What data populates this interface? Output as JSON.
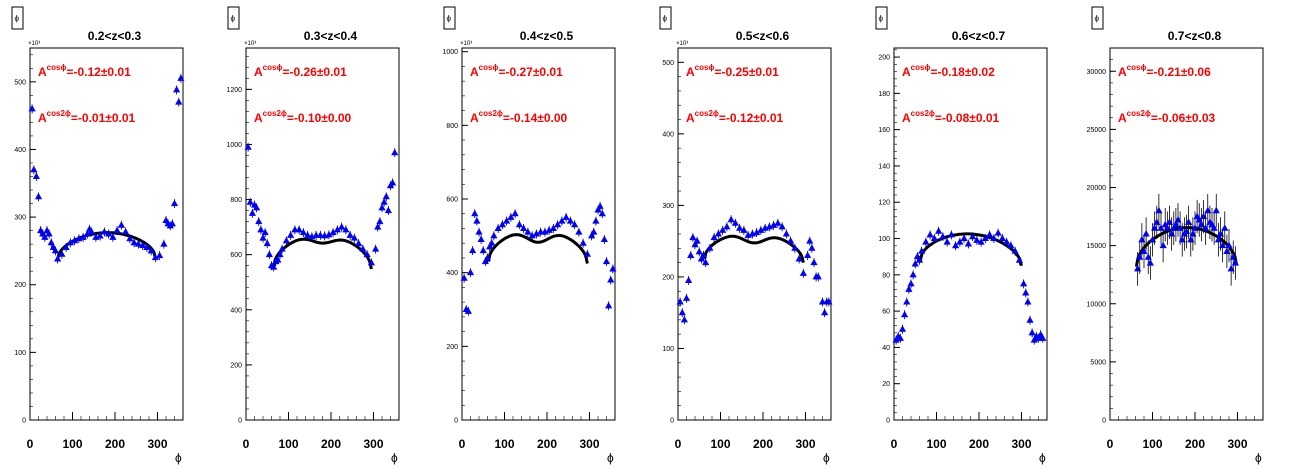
{
  "panel_tab_icon": "phi-tab-icon",
  "colors": {
    "marker": "#0000ff",
    "fit": "#000000",
    "annotation": "#ff0000"
  },
  "chart_data": [
    {
      "type": "scatter",
      "title": "0.2<z<0.3",
      "xlabel": "ϕ",
      "multiplier": "×10³",
      "xlim": [
        0,
        360
      ],
      "ylim": [
        0,
        550
      ],
      "xticks": [
        0,
        100,
        200,
        300
      ],
      "yticks": [
        0,
        100,
        200,
        300,
        400,
        500
      ],
      "annotations": [
        "A^{cosϕ}=-0.12±0.01",
        "A^{cos2ϕ}=-0.01±0.01"
      ],
      "points": [
        [
          5,
          460
        ],
        [
          9,
          370
        ],
        [
          15,
          360
        ],
        [
          20,
          330
        ],
        [
          25,
          280
        ],
        [
          30,
          275
        ],
        [
          35,
          270
        ],
        [
          40,
          280
        ],
        [
          45,
          275
        ],
        [
          50,
          262
        ],
        [
          55,
          255
        ],
        [
          60,
          250
        ],
        [
          65,
          238
        ],
        [
          75,
          245
        ],
        [
          85,
          255
        ],
        [
          95,
          262
        ],
        [
          105,
          265
        ],
        [
          115,
          268
        ],
        [
          125,
          270
        ],
        [
          135,
          275
        ],
        [
          140,
          282
        ],
        [
          145,
          278
        ],
        [
          155,
          270
        ],
        [
          165,
          272
        ],
        [
          175,
          278
        ],
        [
          185,
          275
        ],
        [
          195,
          270
        ],
        [
          205,
          280
        ],
        [
          215,
          288
        ],
        [
          225,
          278
        ],
        [
          235,
          268
        ],
        [
          245,
          262
        ],
        [
          255,
          260
        ],
        [
          265,
          258
        ],
        [
          275,
          255
        ],
        [
          285,
          250
        ],
        [
          295,
          240
        ],
        [
          305,
          243
        ],
        [
          315,
          260
        ],
        [
          320,
          295
        ],
        [
          325,
          290
        ],
        [
          330,
          287
        ],
        [
          335,
          290
        ],
        [
          340,
          320
        ],
        [
          345,
          488
        ],
        [
          350,
          470
        ],
        [
          355,
          505
        ]
      ],
      "fit": {
        "x_start": 65,
        "x_end": 295,
        "y_start": 238,
        "y_end": 240,
        "amplitude": 38,
        "peak_phase": 180
      }
    },
    {
      "type": "scatter",
      "title": "0.3<z<0.4",
      "xlabel": "ϕ",
      "multiplier": "×10³",
      "xlim": [
        0,
        360
      ],
      "ylim": [
        0,
        1350
      ],
      "xticks": [
        0,
        100,
        200,
        300
      ],
      "yticks": [
        0,
        200,
        400,
        600,
        800,
        1000,
        1200
      ],
      "annotations": [
        "A^{cosϕ}=-0.26±0.01",
        "A^{cos2ϕ}=-0.10±0.00"
      ],
      "points": [
        [
          5,
          990
        ],
        [
          10,
          790
        ],
        [
          15,
          750
        ],
        [
          20,
          780
        ],
        [
          25,
          770
        ],
        [
          30,
          720
        ],
        [
          35,
          690
        ],
        [
          40,
          660
        ],
        [
          45,
          680
        ],
        [
          50,
          640
        ],
        [
          55,
          600
        ],
        [
          60,
          560
        ],
        [
          65,
          555
        ],
        [
          70,
          575
        ],
        [
          75,
          580
        ],
        [
          80,
          600
        ],
        [
          85,
          620
        ],
        [
          95,
          650
        ],
        [
          105,
          670
        ],
        [
          115,
          690
        ],
        [
          125,
          690
        ],
        [
          135,
          680
        ],
        [
          145,
          670
        ],
        [
          155,
          665
        ],
        [
          165,
          670
        ],
        [
          175,
          670
        ],
        [
          185,
          668
        ],
        [
          195,
          672
        ],
        [
          205,
          680
        ],
        [
          215,
          690
        ],
        [
          225,
          700
        ],
        [
          235,
          690
        ],
        [
          245,
          670
        ],
        [
          255,
          660
        ],
        [
          265,
          640
        ],
        [
          275,
          620
        ],
        [
          285,
          600
        ],
        [
          295,
          570
        ],
        [
          305,
          620
        ],
        [
          310,
          700
        ],
        [
          315,
          720
        ],
        [
          320,
          770
        ],
        [
          325,
          790
        ],
        [
          330,
          810
        ],
        [
          335,
          760
        ],
        [
          340,
          850
        ],
        [
          345,
          860
        ],
        [
          350,
          970
        ]
      ],
      "fit": {
        "x_start": 65,
        "x_end": 295,
        "y_start": 556,
        "y_end": 548,
        "amplitude": 120,
        "peak_phase": 180,
        "dip": 30
      }
    },
    {
      "type": "scatter",
      "title": "0.4<z<0.5",
      "xlabel": "ϕ",
      "multiplier": "×10³",
      "xlim": [
        0,
        360
      ],
      "ylim": [
        0,
        1010
      ],
      "xticks": [
        0,
        100,
        200,
        300
      ],
      "yticks": [
        0,
        200,
        400,
        600,
        800,
        1000
      ],
      "annotations": [
        "A^{cosϕ}=-0.27±0.01",
        "A^{cos2ϕ}=-0.14±0.00"
      ],
      "points": [
        [
          5,
          385
        ],
        [
          10,
          300
        ],
        [
          15,
          295
        ],
        [
          20,
          400
        ],
        [
          25,
          460
        ],
        [
          30,
          560
        ],
        [
          35,
          540
        ],
        [
          40,
          510
        ],
        [
          45,
          490
        ],
        [
          50,
          460
        ],
        [
          55,
          430
        ],
        [
          60,
          440
        ],
        [
          65,
          470
        ],
        [
          70,
          480
        ],
        [
          75,
          500
        ],
        [
          85,
          520
        ],
        [
          95,
          530
        ],
        [
          105,
          540
        ],
        [
          115,
          550
        ],
        [
          125,
          560
        ],
        [
          135,
          530
        ],
        [
          145,
          520
        ],
        [
          155,
          510
        ],
        [
          165,
          500
        ],
        [
          175,
          505
        ],
        [
          185,
          510
        ],
        [
          195,
          510
        ],
        [
          205,
          515
        ],
        [
          215,
          520
        ],
        [
          225,
          530
        ],
        [
          235,
          540
        ],
        [
          245,
          550
        ],
        [
          255,
          540
        ],
        [
          265,
          530
        ],
        [
          275,
          510
        ],
        [
          285,
          480
        ],
        [
          295,
          450
        ],
        [
          305,
          500
        ],
        [
          310,
          510
        ],
        [
          315,
          540
        ],
        [
          320,
          570
        ],
        [
          325,
          580
        ],
        [
          330,
          560
        ],
        [
          335,
          490
        ],
        [
          340,
          430
        ],
        [
          345,
          310
        ],
        [
          350,
          380
        ],
        [
          355,
          410
        ]
      ],
      "fit": {
        "x_start": 62,
        "x_end": 295,
        "y_start": 430,
        "y_end": 425,
        "amplitude": 90,
        "peak_phase": 180,
        "dip": 35
      }
    },
    {
      "type": "scatter",
      "title": "0.5<z<0.6",
      "xlabel": "ϕ",
      "multiplier": "×10³",
      "xlim": [
        0,
        360
      ],
      "ylim": [
        0,
        520
      ],
      "xticks": [
        0,
        100,
        200,
        300
      ],
      "yticks": [
        0,
        100,
        200,
        300,
        400,
        500
      ],
      "annotations": [
        "A^{cosϕ}=-0.25±0.01",
        "A^{cos2ϕ}=-0.12±0.01"
      ],
      "points": [
        [
          5,
          165
        ],
        [
          10,
          150
        ],
        [
          15,
          140
        ],
        [
          20,
          170
        ],
        [
          25,
          195
        ],
        [
          30,
          230
        ],
        [
          35,
          255
        ],
        [
          40,
          245
        ],
        [
          45,
          250
        ],
        [
          50,
          235
        ],
        [
          55,
          225
        ],
        [
          60,
          230
        ],
        [
          65,
          220
        ],
        [
          75,
          240
        ],
        [
          85,
          255
        ],
        [
          95,
          260
        ],
        [
          105,
          265
        ],
        [
          115,
          270
        ],
        [
          125,
          280
        ],
        [
          135,
          275
        ],
        [
          145,
          268
        ],
        [
          155,
          265
        ],
        [
          165,
          258
        ],
        [
          175,
          260
        ],
        [
          185,
          262
        ],
        [
          195,
          265
        ],
        [
          205,
          268
        ],
        [
          215,
          270
        ],
        [
          225,
          272
        ],
        [
          235,
          275
        ],
        [
          245,
          270
        ],
        [
          255,
          260
        ],
        [
          265,
          250
        ],
        [
          275,
          240
        ],
        [
          285,
          225
        ],
        [
          295,
          205
        ],
        [
          305,
          230
        ],
        [
          310,
          250
        ],
        [
          315,
          240
        ],
        [
          320,
          220
        ],
        [
          325,
          200
        ],
        [
          330,
          200
        ],
        [
          340,
          165
        ],
        [
          345,
          150
        ],
        [
          350,
          165
        ],
        [
          355,
          165
        ]
      ],
      "fit": {
        "x_start": 62,
        "x_end": 295,
        "y_start": 225,
        "y_end": 220,
        "amplitude": 40,
        "peak_phase": 180,
        "dip": 15
      }
    },
    {
      "type": "scatter",
      "title": "0.6<z<0.7",
      "xlabel": "ϕ",
      "multiplier": "",
      "xlim": [
        0,
        360
      ],
      "ylim": [
        0,
        205
      ],
      "xticks": [
        0,
        100,
        200,
        300
      ],
      "yticks": [
        0,
        20,
        40,
        60,
        80,
        100,
        120,
        140,
        160,
        180,
        200
      ],
      "annotations": [
        "A^{cosϕ}=-0.18±0.02",
        "A^{cos2ϕ}=-0.08±0.01"
      ],
      "points": [
        [
          5,
          44
        ],
        [
          10,
          46
        ],
        [
          15,
          45
        ],
        [
          20,
          50
        ],
        [
          25,
          58
        ],
        [
          30,
          65
        ],
        [
          35,
          72
        ],
        [
          40,
          75
        ],
        [
          45,
          80
        ],
        [
          50,
          86
        ],
        [
          55,
          90
        ],
        [
          60,
          88
        ],
        [
          65,
          93
        ],
        [
          75,
          98
        ],
        [
          85,
          102
        ],
        [
          95,
          100
        ],
        [
          105,
          104
        ],
        [
          115,
          101
        ],
        [
          125,
          98
        ],
        [
          135,
          102
        ],
        [
          145,
          96
        ],
        [
          155,
          98
        ],
        [
          165,
          100
        ],
        [
          175,
          97
        ],
        [
          185,
          101
        ],
        [
          195,
          99
        ],
        [
          205,
          98
        ],
        [
          215,
          100
        ],
        [
          225,
          102
        ],
        [
          235,
          100
        ],
        [
          245,
          103
        ],
        [
          255,
          100
        ],
        [
          265,
          98
        ],
        [
          275,
          96
        ],
        [
          285,
          93
        ],
        [
          295,
          88
        ],
        [
          305,
          75
        ],
        [
          310,
          70
        ],
        [
          315,
          65
        ],
        [
          320,
          55
        ],
        [
          325,
          48
        ],
        [
          330,
          44
        ],
        [
          335,
          46
        ],
        [
          340,
          45
        ],
        [
          345,
          47
        ],
        [
          350,
          45
        ]
      ],
      "fit": {
        "x_start": 62,
        "x_end": 300,
        "y_start": 88,
        "y_end": 85,
        "amplitude": 16,
        "peak_phase": 180,
        "dip": 0
      }
    },
    {
      "type": "scatter",
      "title": "0.7<z<0.8",
      "xlabel": "ϕ",
      "multiplier": "",
      "xlim": [
        0,
        360
      ],
      "ylim": [
        0,
        32000
      ],
      "xticks": [
        0,
        100,
        200,
        300
      ],
      "yticks": [
        0,
        5000,
        10000,
        15000,
        20000,
        25000,
        30000
      ],
      "annotations": [
        "A^{cosϕ}=-0.21±0.06",
        "A^{cos2ϕ}=-0.06±0.03"
      ],
      "points": [
        [
          65,
          13000
        ],
        [
          70,
          14000
        ],
        [
          75,
          15500
        ],
        [
          80,
          14500
        ],
        [
          85,
          16000
        ],
        [
          90,
          14000
        ],
        [
          95,
          13500
        ],
        [
          100,
          15500
        ],
        [
          105,
          16500
        ],
        [
          110,
          17000
        ],
        [
          115,
          18000
        ],
        [
          120,
          16500
        ],
        [
          125,
          15000
        ],
        [
          130,
          16800
        ],
        [
          135,
          16500
        ],
        [
          140,
          17000
        ],
        [
          145,
          16000
        ],
        [
          150,
          16500
        ],
        [
          155,
          16800
        ],
        [
          160,
          17200
        ],
        [
          165,
          16500
        ],
        [
          170,
          15500
        ],
        [
          175,
          16000
        ],
        [
          180,
          16200
        ],
        [
          185,
          17000
        ],
        [
          190,
          15500
        ],
        [
          195,
          16000
        ],
        [
          200,
          16500
        ],
        [
          205,
          17500
        ],
        [
          210,
          17200
        ],
        [
          215,
          16800
        ],
        [
          220,
          17500
        ],
        [
          225,
          16500
        ],
        [
          230,
          18000
        ],
        [
          235,
          17000
        ],
        [
          240,
          16800
        ],
        [
          245,
          16500
        ],
        [
          250,
          18000
        ],
        [
          255,
          15500
        ],
        [
          260,
          16000
        ],
        [
          265,
          15000
        ],
        [
          270,
          16500
        ],
        [
          275,
          14500
        ],
        [
          280,
          15000
        ],
        [
          285,
          13000
        ],
        [
          290,
          14000
        ],
        [
          295,
          13500
        ]
      ],
      "fit": {
        "x_start": 62,
        "x_end": 298,
        "y_start": 13200,
        "y_end": 13300,
        "amplitude": 3300,
        "peak_phase": 180,
        "dip": 0
      }
    }
  ]
}
